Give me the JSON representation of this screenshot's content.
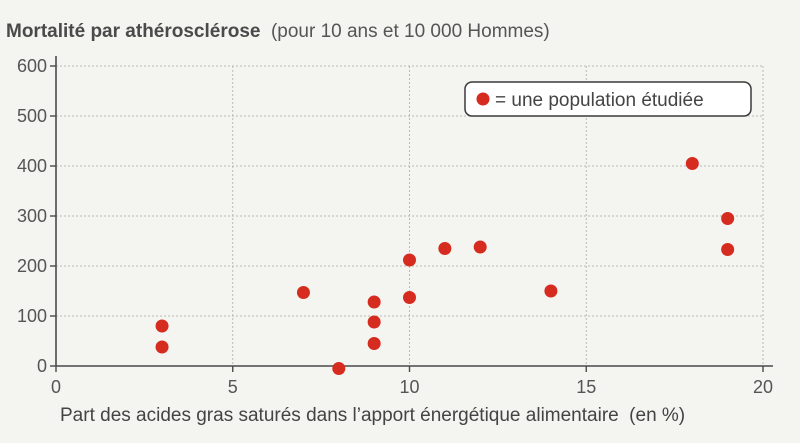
{
  "chart_data": {
    "type": "scatter",
    "title": "Mortalité par athérosclérose",
    "subtitle": "(pour 10 ans et 10 000 Hommes)",
    "xlabel_main": "Part des acides gras saturés dans l’apport énergétique alimentaire",
    "xlabel_unit": "(en %)",
    "xlim": [
      0,
      20
    ],
    "ylim": [
      0,
      600
    ],
    "xticks": [
      0,
      5,
      10,
      15,
      20
    ],
    "yticks": [
      0,
      100,
      200,
      300,
      400,
      500,
      600
    ],
    "grid": true,
    "legend_position": "top-right",
    "legend_label": "= une population étudiée",
    "point_color": "#d62b1f",
    "series": [
      {
        "x": [
          3,
          3,
          7,
          8,
          9,
          9,
          9,
          10,
          10,
          11,
          12,
          14,
          18,
          19,
          19
        ],
        "y": [
          38,
          80,
          147,
          -5,
          45,
          88,
          128,
          137,
          212,
          235,
          238,
          150,
          405,
          295,
          233
        ]
      }
    ]
  }
}
